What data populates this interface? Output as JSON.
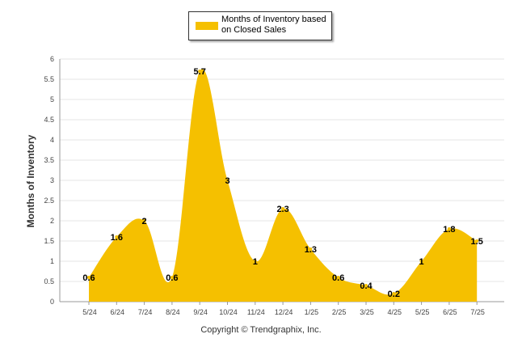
{
  "chart_data": {
    "type": "area",
    "categories": [
      "5/24",
      "6/24",
      "7/24",
      "8/24",
      "9/24",
      "10/24",
      "11/24",
      "12/24",
      "1/25",
      "2/25",
      "3/25",
      "4/25",
      "5/25",
      "6/25",
      "7/25"
    ],
    "series": [
      {
        "name": "Months of Inventory based on Closed Sales",
        "values": [
          0.6,
          1.6,
          2,
          0.6,
          5.7,
          3,
          1,
          2.3,
          1.3,
          0.6,
          0.4,
          0.2,
          1,
          1.8,
          1.5
        ],
        "color": "#f5c000"
      }
    ],
    "ylabel": "Months of Inventory",
    "yticks": [
      "0",
      "0.5",
      "1",
      "1.5",
      "2",
      "2.5",
      "3",
      "3.5",
      "4",
      "4.5",
      "5",
      "5.5",
      "6"
    ],
    "ylim": [
      0,
      6
    ],
    "grid": true,
    "legend": "top-center"
  },
  "legend": {
    "label": "Months of Inventory based on Closed Sales",
    "color": "#f5c000"
  },
  "footer": {
    "copyright": "Copyright © Trendgraphix, Inc."
  }
}
